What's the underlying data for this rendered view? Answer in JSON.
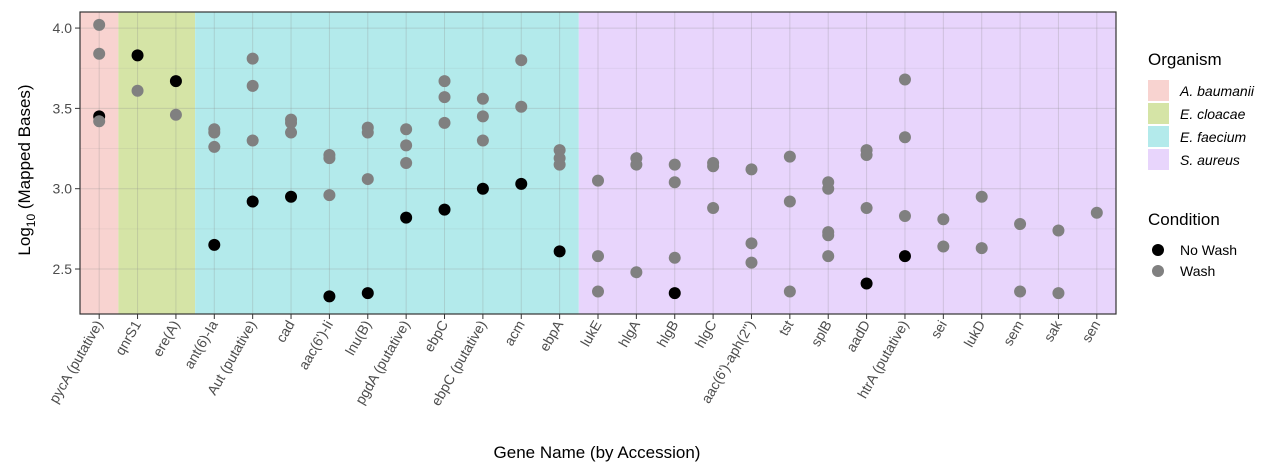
{
  "chart_data": {
    "type": "scatter",
    "xlabel": "Gene Name (by Accession)",
    "ylabel_base": "Log",
    "ylabel_sub": "10",
    "ylabel_rest": " (Mapped Bases)",
    "ylim": [
      2.22,
      4.1
    ],
    "yticks": [
      "2.5",
      "3.0",
      "3.5",
      "4.0"
    ],
    "categories": [
      "pycA (putative)",
      "qnrS1",
      "ere(A)",
      "ant(6)-Ia",
      "Aut (putative)",
      "cad",
      "aac(6')-Ii",
      "lnu(B)",
      "pgdA (putative)",
      "ebpC",
      "ebpC (putative)",
      "acm",
      "ebpA",
      "lukE",
      "hlgA",
      "hlgB",
      "hlgC",
      "aac(6')-aph(2'')",
      "tst",
      "splB",
      "aadD",
      "htrA (putative)",
      "sei",
      "lukD",
      "sem",
      "sak",
      "sen"
    ],
    "organism_bands": [
      {
        "name": "A. baumanii",
        "color": "#f8d3d0",
        "start": 0,
        "end": 0
      },
      {
        "name": "E. cloacae",
        "color": "#d5e4a6",
        "start": 1,
        "end": 2
      },
      {
        "name": "E. faecium",
        "color": "#b3eaeb",
        "start": 3,
        "end": 12
      },
      {
        "name": "S. aureus",
        "color": "#e8d5fc",
        "start": 13,
        "end": 26
      }
    ],
    "legend_organism_title": "Organism",
    "legend_condition_title": "Condition",
    "series": [
      {
        "name": "No Wash",
        "color": "#000000",
        "points": [
          [
            "pycA (putative)",
            3.45
          ],
          [
            "qnrS1",
            3.83
          ],
          [
            "ere(A)",
            3.67
          ],
          [
            "ant(6)-Ia",
            2.65
          ],
          [
            "Aut (putative)",
            2.92
          ],
          [
            "cad",
            2.95
          ],
          [
            "aac(6')-Ii",
            2.33
          ],
          [
            "lnu(B)",
            2.35
          ],
          [
            "pgdA (putative)",
            2.82
          ],
          [
            "ebpC",
            2.87
          ],
          [
            "ebpC (putative)",
            3.0
          ],
          [
            "acm",
            3.03
          ],
          [
            "ebpA",
            2.61
          ],
          [
            "hlgB",
            2.35
          ],
          [
            "aadD",
            2.41
          ],
          [
            "htrA (putative)",
            2.58
          ]
        ]
      },
      {
        "name": "Wash",
        "color": "#808080",
        "points": [
          [
            "pycA (putative)",
            4.02
          ],
          [
            "pycA (putative)",
            3.84
          ],
          [
            "pycA (putative)",
            3.42
          ],
          [
            "qnrS1",
            3.61
          ],
          [
            "ere(A)",
            3.46
          ],
          [
            "ant(6)-Ia",
            3.37
          ],
          [
            "ant(6)-Ia",
            3.35
          ],
          [
            "ant(6)-Ia",
            3.26
          ],
          [
            "Aut (putative)",
            3.81
          ],
          [
            "Aut (putative)",
            3.64
          ],
          [
            "Aut (putative)",
            3.3
          ],
          [
            "cad",
            3.43
          ],
          [
            "cad",
            3.41
          ],
          [
            "cad",
            3.35
          ],
          [
            "aac(6')-Ii",
            3.21
          ],
          [
            "aac(6')-Ii",
            3.19
          ],
          [
            "aac(6')-Ii",
            2.96
          ],
          [
            "lnu(B)",
            3.38
          ],
          [
            "lnu(B)",
            3.35
          ],
          [
            "lnu(B)",
            3.06
          ],
          [
            "pgdA (putative)",
            3.37
          ],
          [
            "pgdA (putative)",
            3.27
          ],
          [
            "pgdA (putative)",
            3.16
          ],
          [
            "ebpC",
            3.67
          ],
          [
            "ebpC",
            3.57
          ],
          [
            "ebpC",
            3.41
          ],
          [
            "ebpC (putative)",
            3.56
          ],
          [
            "ebpC (putative)",
            3.45
          ],
          [
            "ebpC (putative)",
            3.3
          ],
          [
            "acm",
            3.8
          ],
          [
            "acm",
            3.51
          ],
          [
            "ebpA",
            3.24
          ],
          [
            "ebpA",
            3.19
          ],
          [
            "ebpA",
            3.15
          ],
          [
            "lukE",
            3.05
          ],
          [
            "lukE",
            2.58
          ],
          [
            "lukE",
            2.36
          ],
          [
            "hlgA",
            3.19
          ],
          [
            "hlgA",
            3.15
          ],
          [
            "hlgA",
            2.48
          ],
          [
            "hlgB",
            3.15
          ],
          [
            "hlgB",
            3.04
          ],
          [
            "hlgB",
            2.57
          ],
          [
            "hlgC",
            3.16
          ],
          [
            "hlgC",
            3.14
          ],
          [
            "hlgC",
            2.88
          ],
          [
            "aac(6')-aph(2'')",
            3.12
          ],
          [
            "aac(6')-aph(2'')",
            2.66
          ],
          [
            "aac(6')-aph(2'')",
            2.54
          ],
          [
            "tst",
            3.2
          ],
          [
            "tst",
            2.92
          ],
          [
            "tst",
            2.36
          ],
          [
            "splB",
            3.04
          ],
          [
            "splB",
            3.0
          ],
          [
            "splB",
            2.73
          ],
          [
            "splB",
            2.71
          ],
          [
            "splB",
            2.58
          ],
          [
            "aadD",
            3.24
          ],
          [
            "aadD",
            3.21
          ],
          [
            "aadD",
            2.88
          ],
          [
            "htrA (putative)",
            3.68
          ],
          [
            "htrA (putative)",
            3.32
          ],
          [
            "htrA (putative)",
            2.83
          ],
          [
            "sei",
            2.81
          ],
          [
            "sei",
            2.64
          ],
          [
            "lukD",
            2.95
          ],
          [
            "lukD",
            2.63
          ],
          [
            "sem",
            2.78
          ],
          [
            "sem",
            2.36
          ],
          [
            "sak",
            2.74
          ],
          [
            "sak",
            2.35
          ],
          [
            "sen",
            2.85
          ]
        ]
      }
    ],
    "grid": true,
    "legend_position": "right"
  }
}
